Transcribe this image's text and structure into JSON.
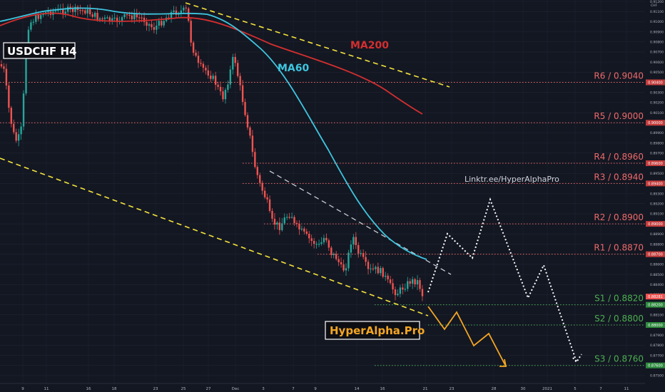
{
  "chart_data": {
    "type": "candlestick",
    "title": "USDCHF H4",
    "axis_unit": "CHF",
    "watermark": "HyperAlpha.Pro",
    "link_text": "Linktr.ee/HyperAlphaPro",
    "colors": {
      "background": "#131722",
      "grid": "#1f2433",
      "bull": "#26a69a",
      "bear": "#ef5350",
      "ma60": "#3ec6e0",
      "ma200": "#d32f2f",
      "channel": "#f5e33b",
      "resistance": "#ef6a6a",
      "support": "#4caf50",
      "bear_path": "#f5a623",
      "bull_path": "#ffffff"
    },
    "y_range": [
      0.8745,
      0.912
    ],
    "y_ticks": [
      "0.91200",
      "0.91100",
      "0.91000",
      "0.90900",
      "0.90800",
      "0.90700",
      "0.90600",
      "0.90500",
      "0.90400",
      "0.90300",
      "0.90200",
      "0.90100",
      "0.90000",
      "0.89900",
      "0.89800",
      "0.89700",
      "0.89600",
      "0.89500",
      "0.89400",
      "0.89300",
      "0.89200",
      "0.89100",
      "0.89000",
      "0.88900",
      "0.88800",
      "0.88700",
      "0.88600",
      "0.88500",
      "0.88400",
      "0.88300",
      "0.88200",
      "0.88100",
      "0.88000",
      "0.87900",
      "0.87800",
      "0.87700",
      "0.87600",
      "0.87500"
    ],
    "x_ticks": [
      "9",
      "11",
      "16",
      "18",
      "23",
      "25",
      "27",
      "Dec",
      "3",
      "7",
      "9",
      "14",
      "16",
      "21",
      "23",
      "28",
      "30",
      "2021",
      "5",
      "7",
      "11"
    ],
    "moving_averages": [
      {
        "name": "MA60",
        "label": "MA60"
      },
      {
        "name": "MA200",
        "label": "MA200"
      }
    ],
    "levels": [
      {
        "label": "R6 / 0.9040",
        "value": 0.904,
        "tag": "0.90400",
        "kind": "resistance"
      },
      {
        "label": "R5 / 0.9000",
        "value": 0.9,
        "tag": "0.90000",
        "kind": "resistance"
      },
      {
        "label": "R4 / 0.8960",
        "value": 0.896,
        "tag": "0.89600",
        "kind": "resistance"
      },
      {
        "label": "R3 / 0.8940",
        "value": 0.894,
        "tag": "0.89400",
        "kind": "resistance"
      },
      {
        "label": "R2 / 0.8900",
        "value": 0.89,
        "tag": "0.89000",
        "kind": "resistance"
      },
      {
        "label": "R1 / 0.8870",
        "value": 0.887,
        "tag": "0.88700",
        "kind": "resistance"
      },
      {
        "label": "S1 / 0.8820",
        "value": 0.882,
        "tag": "0.88200",
        "kind": "support"
      },
      {
        "label": "S2 / 0.8800",
        "value": 0.88,
        "tag": "0.88000",
        "kind": "support"
      },
      {
        "label": "S3 / 0.8760",
        "value": 0.876,
        "tag": "0.87600",
        "kind": "support"
      }
    ],
    "current_price_tag": "0.88281"
  }
}
